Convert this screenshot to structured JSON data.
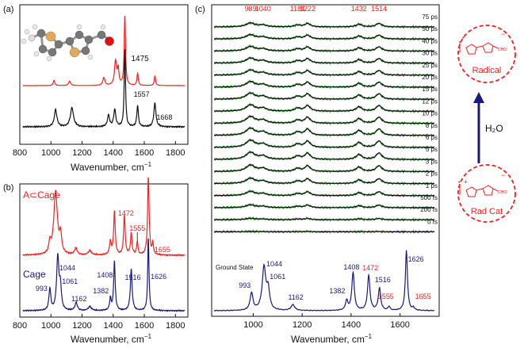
{
  "colors": {
    "black": "#111111",
    "red": "#ee2222",
    "navy": "#1a1a7a",
    "green": "#2a8a2a"
  },
  "chart_data": [
    {
      "panel": "a",
      "type": "line",
      "panel_label": "(a)",
      "xlabel": "Wavenumber, cm",
      "xlabel_sup": "−1",
      "xlim": [
        800,
        1880
      ],
      "x_ticks": [
        "800",
        "1000",
        "1200",
        "1400",
        "1600",
        "1800"
      ],
      "x_tick_values": [
        800,
        1000,
        1200,
        1400,
        1600,
        1800
      ],
      "peak_labels": [
        {
          "x": 1475,
          "text": "1475"
        },
        {
          "x": 1557,
          "text": "1557"
        },
        {
          "x": 1668,
          "text": "1668"
        }
      ],
      "series": [
        {
          "color": "red",
          "peaks": [
            [
              1020,
              0.12,
              6
            ],
            [
              1120,
              0.1,
              8
            ],
            [
              1340,
              0.18,
              8
            ],
            [
              1415,
              0.55,
              8
            ],
            [
              1432,
              0.35,
              6
            ],
            [
              1475,
              1.6,
              5
            ],
            [
              1557,
              0.28,
              5
            ],
            [
              1668,
              0.22,
              5
            ]
          ]
        },
        {
          "color": "black",
          "peaks": [
            [
              1030,
              0.45,
              10
            ],
            [
              1135,
              0.5,
              12
            ],
            [
              1370,
              0.3,
              8
            ],
            [
              1410,
              0.45,
              8
            ],
            [
              1475,
              2.05,
              5
            ],
            [
              1557,
              0.55,
              6
            ],
            [
              1668,
              0.62,
              8
            ]
          ]
        }
      ]
    },
    {
      "panel": "b",
      "type": "line",
      "panel_label": "(b)",
      "xlabel": "Wavenumber, cm",
      "xlabel_sup": "−1",
      "xlim": [
        800,
        1880
      ],
      "x_ticks": [
        "800",
        "1000",
        "1200",
        "1400",
        "1600",
        "1800"
      ],
      "x_tick_values": [
        800,
        1000,
        1200,
        1400,
        1600,
        1800
      ],
      "legend": [
        {
          "text": "A⊂Cage",
          "color": "red"
        },
        {
          "text": "Cage",
          "color": "navy"
        }
      ],
      "series": [
        {
          "name": "A⊂Cage",
          "color": "red",
          "peaks": [
            [
              993,
              0.25,
              7
            ],
            [
              1030,
              1.45,
              14
            ],
            [
              1062,
              0.4,
              8
            ],
            [
              1160,
              0.15,
              10
            ],
            [
              1250,
              0.1,
              12
            ],
            [
              1382,
              0.3,
              7
            ],
            [
              1408,
              1.0,
              6
            ],
            [
              1472,
              0.9,
              6
            ],
            [
              1516,
              0.5,
              6
            ],
            [
              1555,
              0.3,
              5
            ],
            [
              1626,
              1.8,
              6
            ],
            [
              1655,
              0.25,
              5
            ]
          ]
        },
        {
          "name": "Cage",
          "color": "navy",
          "peaks": [
            [
              993,
              0.55,
              7
            ],
            [
              1044,
              1.35,
              9
            ],
            [
              1061,
              0.55,
              7
            ],
            [
              1162,
              0.2,
              9
            ],
            [
              1250,
              0.1,
              12
            ],
            [
              1382,
              0.3,
              6
            ],
            [
              1408,
              1.25,
              6
            ],
            [
              1516,
              1.05,
              7
            ],
            [
              1626,
              1.85,
              5
            ]
          ]
        }
      ],
      "peak_labels": [
        {
          "text": "1044",
          "color": "navy"
        },
        {
          "text": "1061",
          "color": "navy"
        },
        {
          "text": "993",
          "color": "navy"
        },
        {
          "text": "1162",
          "color": "navy"
        },
        {
          "text": "1382",
          "color": "navy"
        },
        {
          "text": "1408",
          "color": "navy"
        },
        {
          "text": "1516",
          "color": "navy"
        },
        {
          "text": "1626",
          "color": "navy"
        },
        {
          "text": "1472",
          "color": "red"
        },
        {
          "text": "1555",
          "color": "red"
        },
        {
          "text": "1655",
          "color": "red"
        }
      ]
    },
    {
      "panel": "c",
      "type": "line",
      "panel_label": "(c)",
      "xlabel": "Wavenumber, cm",
      "xlabel_sup": "−1",
      "xlim": [
        830,
        1760
      ],
      "x_ticks": [
        "1000",
        "1200",
        "1400",
        "1600"
      ],
      "x_tick_values": [
        1000,
        1200,
        1400,
        1600
      ],
      "top_peak_labels": [
        {
          "x": 989,
          "text": "989"
        },
        {
          "x": 1040,
          "text": "1040"
        },
        {
          "x": 1181,
          "text": "1181"
        },
        {
          "x": 1222,
          "text": "1222"
        },
        {
          "x": 1432,
          "text": "1432"
        },
        {
          "x": 1514,
          "text": "1514"
        }
      ],
      "delays": [
        "75 ps",
        "50 ps",
        "40 ps",
        "30 ps",
        "25 ps",
        "20 ps",
        "15 ps",
        "12 ps",
        "10 ps",
        "8 ps",
        "6 ps",
        "5 ps",
        "3 ps",
        "2 ps",
        "1 ps",
        "500 fs",
        "200 fs",
        "0 fs"
      ],
      "amplitudes": [
        0.55,
        0.6,
        0.65,
        0.7,
        0.72,
        0.78,
        0.85,
        0.9,
        0.95,
        1.0,
        1.0,
        1.0,
        0.9,
        0.75,
        0.6,
        0.4,
        0.2,
        0.05
      ],
      "transient_peaks": [
        [
          989,
          1.0,
          22
        ],
        [
          1040,
          0.45,
          18
        ],
        [
          1181,
          0.45,
          14
        ],
        [
          1222,
          0.85,
          14
        ],
        [
          1432,
          0.7,
          14
        ],
        [
          1514,
          0.9,
          14
        ]
      ],
      "ground_state_label": "Ground State",
      "ground_state": {
        "color": "navy",
        "peaks": [
          [
            993,
            0.55,
            7
          ],
          [
            1044,
            1.35,
            9
          ],
          [
            1061,
            0.6,
            7
          ],
          [
            1162,
            0.18,
            9
          ],
          [
            1382,
            0.3,
            6
          ],
          [
            1408,
            1.2,
            6
          ],
          [
            1472,
            1.1,
            6
          ],
          [
            1516,
            0.7,
            6
          ],
          [
            1555,
            0.12,
            5
          ],
          [
            1626,
            1.9,
            5
          ],
          [
            1655,
            0.08,
            5
          ]
        ]
      },
      "ground_labels": [
        {
          "text": "1044",
          "color": "navy"
        },
        {
          "text": "1061",
          "color": "navy"
        },
        {
          "text": "993",
          "color": "navy"
        },
        {
          "text": "1162",
          "color": "navy"
        },
        {
          "text": "1382",
          "color": "navy"
        },
        {
          "text": "1408",
          "color": "navy"
        },
        {
          "text": "1472",
          "color": "red"
        },
        {
          "text": "1516",
          "color": "navy"
        },
        {
          "text": "1555",
          "color": "red"
        },
        {
          "text": "1626",
          "color": "navy"
        },
        {
          "text": "1655",
          "color": "red"
        }
      ]
    }
  ],
  "scheme": {
    "radical_label": "Radical",
    "radcat_label": "Rad Cat",
    "arrow_label": "H₂O",
    "cho_label": "CHO",
    "charges": {
      "minus": "−",
      "plus": "+",
      "dot": "•"
    }
  }
}
